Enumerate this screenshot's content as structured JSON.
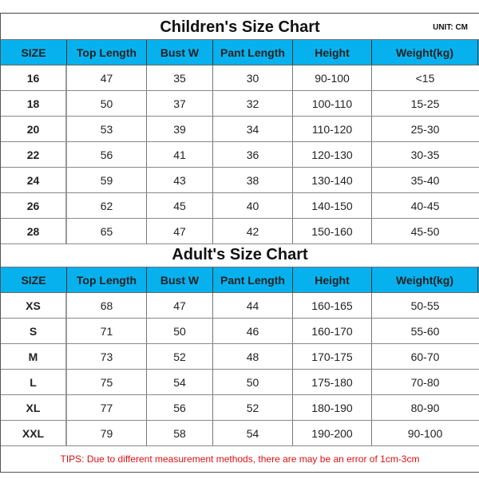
{
  "children": {
    "title": "Children's Size Chart",
    "unit": "UNIT: CM",
    "headers": [
      "SIZE",
      "Top Length",
      "Bust W",
      "Pant Length",
      "Height",
      "Weight(kg)"
    ],
    "rows": [
      [
        "16",
        "47",
        "35",
        "30",
        "90-100",
        "<15"
      ],
      [
        "18",
        "50",
        "37",
        "32",
        "100-110",
        "15-25"
      ],
      [
        "20",
        "53",
        "39",
        "34",
        "110-120",
        "25-30"
      ],
      [
        "22",
        "56",
        "41",
        "36",
        "120-130",
        "30-35"
      ],
      [
        "24",
        "59",
        "43",
        "38",
        "130-140",
        "35-40"
      ],
      [
        "26",
        "62",
        "45",
        "40",
        "140-150",
        "40-45"
      ],
      [
        "28",
        "65",
        "47",
        "42",
        "150-160",
        "45-50"
      ]
    ]
  },
  "adult": {
    "title": "Adult's Size Chart",
    "headers": [
      "SIZE",
      "Top Length",
      "Bust W",
      "Pant Length",
      "Height",
      "Weight(kg)"
    ],
    "rows": [
      [
        "XS",
        "68",
        "47",
        "44",
        "160-165",
        "50-55"
      ],
      [
        "S",
        "71",
        "50",
        "46",
        "160-170",
        "55-60"
      ],
      [
        "M",
        "73",
        "52",
        "48",
        "170-175",
        "60-70"
      ],
      [
        "L",
        "75",
        "54",
        "50",
        "175-180",
        "70-80"
      ],
      [
        "XL",
        "77",
        "56",
        "52",
        "180-190",
        "80-90"
      ],
      [
        "XXL",
        "79",
        "58",
        "54",
        "190-200",
        "90-100"
      ]
    ]
  },
  "tips": "TIPS: Due to different measurement methods, there are may be an error of 1cm-3cm",
  "colors": {
    "header_bg": "#07b1ee",
    "tips_text": "#d11111"
  }
}
